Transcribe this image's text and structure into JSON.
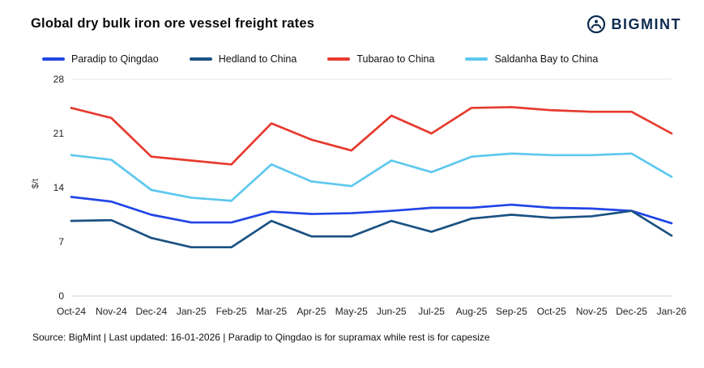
{
  "header": {
    "title": "Global dry bulk iron ore vessel freight rates",
    "brand": "BIGMINT"
  },
  "footer": {
    "source": "Source: BigMint | Last updated: 16-01-2026 | Paradip to Qingdao is for supramax while rest is for capesize"
  },
  "chart_data": {
    "type": "line",
    "title": "Global dry bulk iron ore vessel freight rates",
    "xlabel": "",
    "ylabel": "$/t",
    "ylim": [
      0,
      28
    ],
    "yticks": [
      0,
      7,
      14,
      21,
      28
    ],
    "grid": "top gridline and baseline only",
    "legend_position": "top",
    "categories": [
      "Oct-24",
      "Nov-24",
      "Dec-24",
      "Jan-25",
      "Feb-25",
      "Mar-25",
      "Apr-25",
      "May-25",
      "Jun-25",
      "Jul-25",
      "Aug-25",
      "Sep-25",
      "Oct-25",
      "Nov-25",
      "Dec-25",
      "Jan-26"
    ],
    "series": [
      {
        "name": "Paradip to Qingdao",
        "color": "#2145e6",
        "values": [
          12.8,
          12.2,
          10.5,
          9.5,
          9.5,
          10.9,
          10.6,
          10.7,
          11.0,
          11.4,
          11.4,
          11.8,
          11.4,
          11.3,
          11.0,
          9.4
        ]
      },
      {
        "name": "Hedland to China",
        "color": "#1b5282",
        "values": [
          9.7,
          9.8,
          7.5,
          6.3,
          6.3,
          9.7,
          7.7,
          7.7,
          9.7,
          8.3,
          10.0,
          10.5,
          10.1,
          10.3,
          11.0,
          7.8
        ]
      },
      {
        "name": "Tubarao to China",
        "color": "#e63a2e",
        "values": [
          24.3,
          23.0,
          18.0,
          17.5,
          17.0,
          22.3,
          20.2,
          18.8,
          23.3,
          21.0,
          24.3,
          24.4,
          24.0,
          23.8,
          23.8,
          21.0
        ]
      },
      {
        "name": "Saldanha Bay to China",
        "color": "#5ec8ee",
        "values": [
          18.2,
          17.6,
          13.7,
          12.7,
          12.3,
          17.0,
          14.8,
          14.2,
          17.5,
          16.0,
          18.0,
          18.4,
          18.2,
          18.2,
          18.4,
          15.4
        ]
      }
    ]
  }
}
